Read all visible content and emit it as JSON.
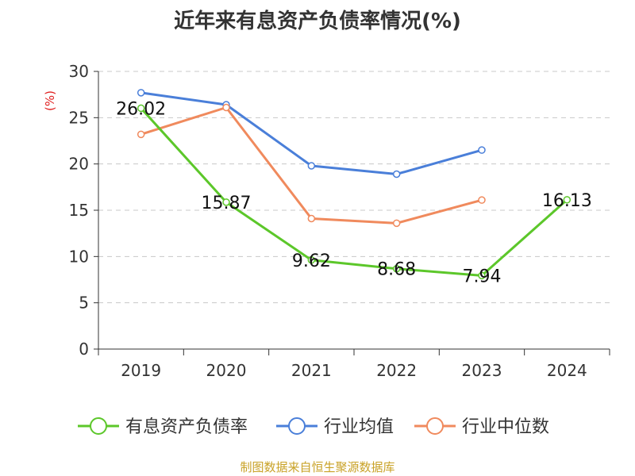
{
  "title": "近年来有息资产负债率情况(%)",
  "source": "制图数据来自恒生聚源数据库",
  "chart_data": {
    "type": "line",
    "title": "近年来有息资产负债率情况(%)",
    "ylabel": "(%)",
    "ylim": [
      0,
      30
    ],
    "yticks": [
      0,
      5,
      10,
      15,
      20,
      25,
      30
    ],
    "categories": [
      "2019",
      "2020",
      "2021",
      "2022",
      "2023",
      "2024"
    ],
    "grid": true,
    "legend_position": "bottom",
    "series": [
      {
        "name": "有息资产负债率",
        "color": "#5cc72a",
        "values": [
          26.02,
          15.87,
          9.62,
          8.68,
          7.94,
          16.13
        ],
        "labels": [
          "26.02",
          "15.87",
          "9.62",
          "8.68",
          "7.94",
          "16.13"
        ]
      },
      {
        "name": "行业均值",
        "color": "#4a7fd9",
        "values": [
          27.7,
          26.4,
          19.8,
          18.9,
          21.5,
          null
        ]
      },
      {
        "name": "行业中位数",
        "color": "#f08a5d",
        "values": [
          23.2,
          26.1,
          14.1,
          13.6,
          16.1,
          null
        ]
      }
    ]
  }
}
